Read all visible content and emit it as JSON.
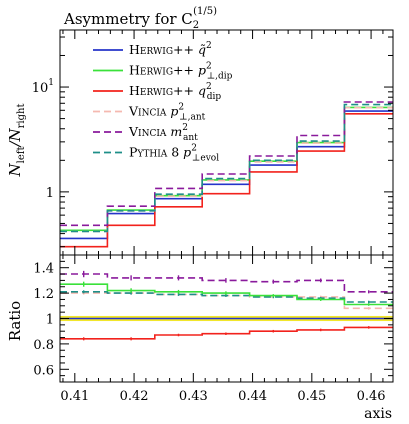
{
  "chart_data": [
    {
      "type": "line",
      "panel": "main",
      "title_prefix": "Asymmetry for C",
      "title_sub": "2",
      "title_sup": "(1/5)",
      "ylabel_main": "N",
      "ylabel_sub1": "left",
      "ylabel_mid": "/N",
      "ylabel_sub2": "right",
      "yscale": "log",
      "ylim": [
        0.25,
        35
      ],
      "xlim": [
        0.4075,
        0.4637
      ],
      "yticks": [
        {
          "value": 1,
          "label": "1",
          "sup": ""
        },
        {
          "value": 10,
          "label": "10",
          "sup": "1"
        }
      ],
      "bin_edges": [
        0.4075,
        0.4155,
        0.4235,
        0.4315,
        0.4395,
        0.4475,
        0.4555,
        0.4637
      ],
      "legend": {
        "placement": "upper-left"
      },
      "series": [
        {
          "name": "HERWIG++ q̃²",
          "label_main": "Herwig++ ",
          "label_sym": "q̃",
          "label_sup": "2",
          "label_sub": "",
          "color": "#2634c9",
          "dash": "",
          "values": [
            0.36,
            0.62,
            0.86,
            1.18,
            1.8,
            2.7,
            5.9
          ]
        },
        {
          "name": "HERWIG++ p²⊥,dip",
          "label_main": "Herwig++ ",
          "label_sym": "p",
          "label_sup": "2",
          "label_sub": "⊥,dip",
          "color": "#3ae13a",
          "dash": "",
          "values": [
            0.43,
            0.67,
            0.92,
            1.3,
            1.96,
            2.95,
            6.4
          ]
        },
        {
          "name": "HERWIG++ q²dip",
          "label_main": "Herwig++ ",
          "label_sym": "q",
          "label_sup": "2",
          "label_sub": "dip",
          "color": "#f2221c",
          "dash": "",
          "values": [
            0.3,
            0.48,
            0.72,
            0.96,
            1.55,
            2.45,
            5.55
          ]
        },
        {
          "name": "VINCIA p²⊥,ant",
          "label_main": "Vincia ",
          "label_sym": "p",
          "label_sup": "2",
          "label_sub": "⊥,ant",
          "color": "#f5b9b0",
          "dash": "7,4",
          "values": [
            0.42,
            0.66,
            0.91,
            1.28,
            1.93,
            2.92,
            6.35
          ]
        },
        {
          "name": "VINCIA m²ant",
          "label_main": "Vincia ",
          "label_sym": "m",
          "label_sup": "2",
          "label_sub": "ant",
          "color": "#8a1a9c",
          "dash": "7,4",
          "values": [
            0.48,
            0.73,
            1.08,
            1.48,
            2.2,
            3.45,
            7.2
          ]
        },
        {
          "name": "PYTHIA 8 p²⊥evol",
          "label_main": "Pythia 8 ",
          "label_sym": "p",
          "label_sup": "2",
          "label_sub": "⊥evol",
          "color": "#1e8f88",
          "dash": "7,4",
          "values": [
            0.42,
            0.66,
            0.95,
            1.34,
            2.0,
            3.05,
            6.8
          ]
        }
      ]
    },
    {
      "type": "line",
      "panel": "ratio",
      "ylabel": "Ratio",
      "xlabel": "axis",
      "ylim": [
        0.5,
        1.5
      ],
      "xlim": [
        0.4075,
        0.4637
      ],
      "yticks": [
        0.6,
        0.8,
        1,
        1.2,
        1.4
      ],
      "ytick_labels": [
        "0.6",
        "0.8",
        "1",
        "1.2",
        "1.4"
      ],
      "xticks": [
        0.41,
        0.42,
        0.43,
        0.44,
        0.45,
        0.46
      ],
      "xtick_labels": [
        "0.41",
        "0.42",
        "0.43",
        "0.44",
        "0.45",
        "0.46"
      ],
      "reference_band": [
        0.98,
        1.02
      ],
      "bin_edges": [
        0.4075,
        0.4155,
        0.4235,
        0.4315,
        0.4395,
        0.4475,
        0.4555,
        0.4637
      ],
      "series": [
        {
          "color": "#f5b9b0",
          "dash": "7,4",
          "values": [
            1.2,
            1.2,
            1.19,
            1.18,
            1.17,
            1.17,
            1.08
          ],
          "errors": [
            0.012,
            0.012,
            0.012,
            0.01,
            0.01,
            0.01,
            0.01
          ]
        },
        {
          "color": "#1e8f88",
          "dash": "7,4",
          "values": [
            1.21,
            1.2,
            1.19,
            1.18,
            1.17,
            1.16,
            1.13
          ],
          "errors": [
            0.012,
            0.012,
            0.012,
            0.01,
            0.01,
            0.01,
            0.01
          ]
        },
        {
          "color": "#3ae13a",
          "dash": "",
          "values": [
            1.27,
            1.22,
            1.21,
            1.2,
            1.18,
            1.15,
            1.11
          ],
          "errors": [
            0.02,
            0.018,
            0.015,
            0.014,
            0.012,
            0.012,
            0.01
          ]
        },
        {
          "color": "#8a1a9c",
          "dash": "7,4",
          "values": [
            1.35,
            1.32,
            1.32,
            1.3,
            1.29,
            1.3,
            1.21
          ],
          "errors": [
            0.025,
            0.02,
            0.02,
            0.018,
            0.016,
            0.015,
            0.012
          ]
        },
        {
          "color": "#f2221c",
          "dash": "",
          "values": [
            0.84,
            0.84,
            0.87,
            0.88,
            0.9,
            0.91,
            0.93
          ],
          "errors": [
            0.012,
            0.012,
            0.01,
            0.01,
            0.01,
            0.01,
            0.01
          ]
        },
        {
          "color": "#2634c9",
          "dash": "",
          "values": [
            1.0,
            1.0,
            1.0,
            1.0,
            1.0,
            1.0,
            1.0
          ],
          "errors": [
            0,
            0,
            0,
            0,
            0,
            0,
            0
          ]
        }
      ]
    }
  ]
}
